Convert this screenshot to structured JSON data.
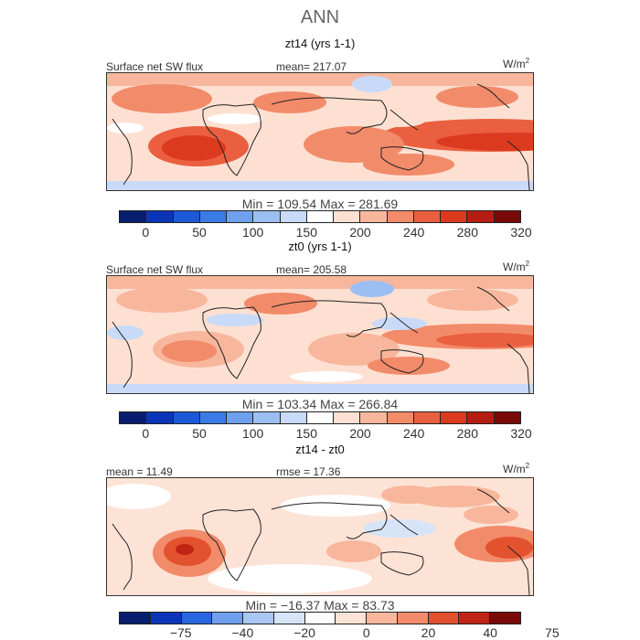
{
  "main_title": "ANN",
  "palettes": {
    "main": [
      "#081d6d",
      "#0b35b8",
      "#1b59d8",
      "#3a7be6",
      "#6fa0ee",
      "#9cbff3",
      "#c8daf8",
      "#ffffff",
      "#fde0d2",
      "#f8b79c",
      "#f28b6a",
      "#ea5f3f",
      "#dc3a1f",
      "#b51d12",
      "#7a0a08"
    ],
    "diff": [
      "#081d6d",
      "#0b35b8",
      "#2a66df",
      "#6fa0ee",
      "#a9c6f4",
      "#d6e4f8",
      "#ffffff",
      "#fde3d6",
      "#f8b79c",
      "#f28b6a",
      "#e3522f",
      "#c02414",
      "#7a0a08"
    ]
  },
  "panels": [
    {
      "title": "zt14 (yrs 1-1)",
      "left_label": "Surface net SW flux",
      "stat_label": "mean= 217.07",
      "units": "W/m",
      "units_exp": "2",
      "minmax": "Min = 109.54 Max = 281.69",
      "palette": "main",
      "ticks": [
        "0",
        "50",
        "100",
        "150",
        "200",
        "240",
        "280",
        "320"
      ],
      "tick_positions": [
        1,
        3,
        5,
        7,
        9,
        11,
        13,
        15
      ]
    },
    {
      "title": "zt0 (yrs 1-1)",
      "left_label": "Surface net SW flux",
      "stat_label": "mean= 205.58",
      "units": "W/m",
      "units_exp": "2",
      "minmax": "Min = 103.34 Max = 266.84",
      "palette": "main",
      "ticks": [
        "0",
        "50",
        "100",
        "150",
        "200",
        "240",
        "280",
        "320"
      ],
      "tick_positions": [
        1,
        3,
        5,
        7,
        9,
        11,
        13,
        15
      ]
    },
    {
      "title": "zt14 - zt0",
      "left_label": "mean = 11.49",
      "stat_label": "rmse = 17.36",
      "units": "W/m",
      "units_exp": "2",
      "minmax": "Min = −16.37 Max = 83.73",
      "palette": "diff",
      "ticks": [
        "−75",
        "−40",
        "−20",
        "0",
        "20",
        "40",
        "75"
      ],
      "tick_positions": [
        2,
        4,
        6,
        8,
        10,
        12,
        14
      ]
    }
  ],
  "chart_data": [
    {
      "type": "heatmap",
      "title": "zt14 (yrs 1-1)",
      "variable": "Surface net SW flux",
      "units": "W/m2",
      "mean": 217.07,
      "min": 109.54,
      "max": 281.69,
      "colorbar_levels": [
        0,
        25,
        50,
        75,
        100,
        125,
        150,
        175,
        200,
        220,
        240,
        260,
        280,
        300,
        320
      ],
      "colorbar_ticks": [
        0,
        50,
        100,
        150,
        200,
        240,
        280,
        320
      ]
    },
    {
      "type": "heatmap",
      "title": "zt0 (yrs 1-1)",
      "variable": "Surface net SW flux",
      "units": "W/m2",
      "mean": 205.58,
      "min": 103.34,
      "max": 266.84,
      "colorbar_levels": [
        0,
        25,
        50,
        75,
        100,
        125,
        150,
        175,
        200,
        220,
        240,
        260,
        280,
        300,
        320
      ],
      "colorbar_ticks": [
        0,
        50,
        100,
        150,
        200,
        240,
        280,
        320
      ]
    },
    {
      "type": "heatmap",
      "title": "zt14 - zt0",
      "units": "W/m2",
      "mean": 11.49,
      "rmse": 17.36,
      "min": -16.37,
      "max": 83.73,
      "colorbar_levels": [
        -100,
        -75,
        -50,
        -40,
        -30,
        -20,
        -10,
        0,
        10,
        20,
        30,
        40,
        50,
        75,
        100
      ],
      "colorbar_ticks": [
        -75,
        -40,
        -20,
        0,
        20,
        40,
        75
      ]
    }
  ]
}
